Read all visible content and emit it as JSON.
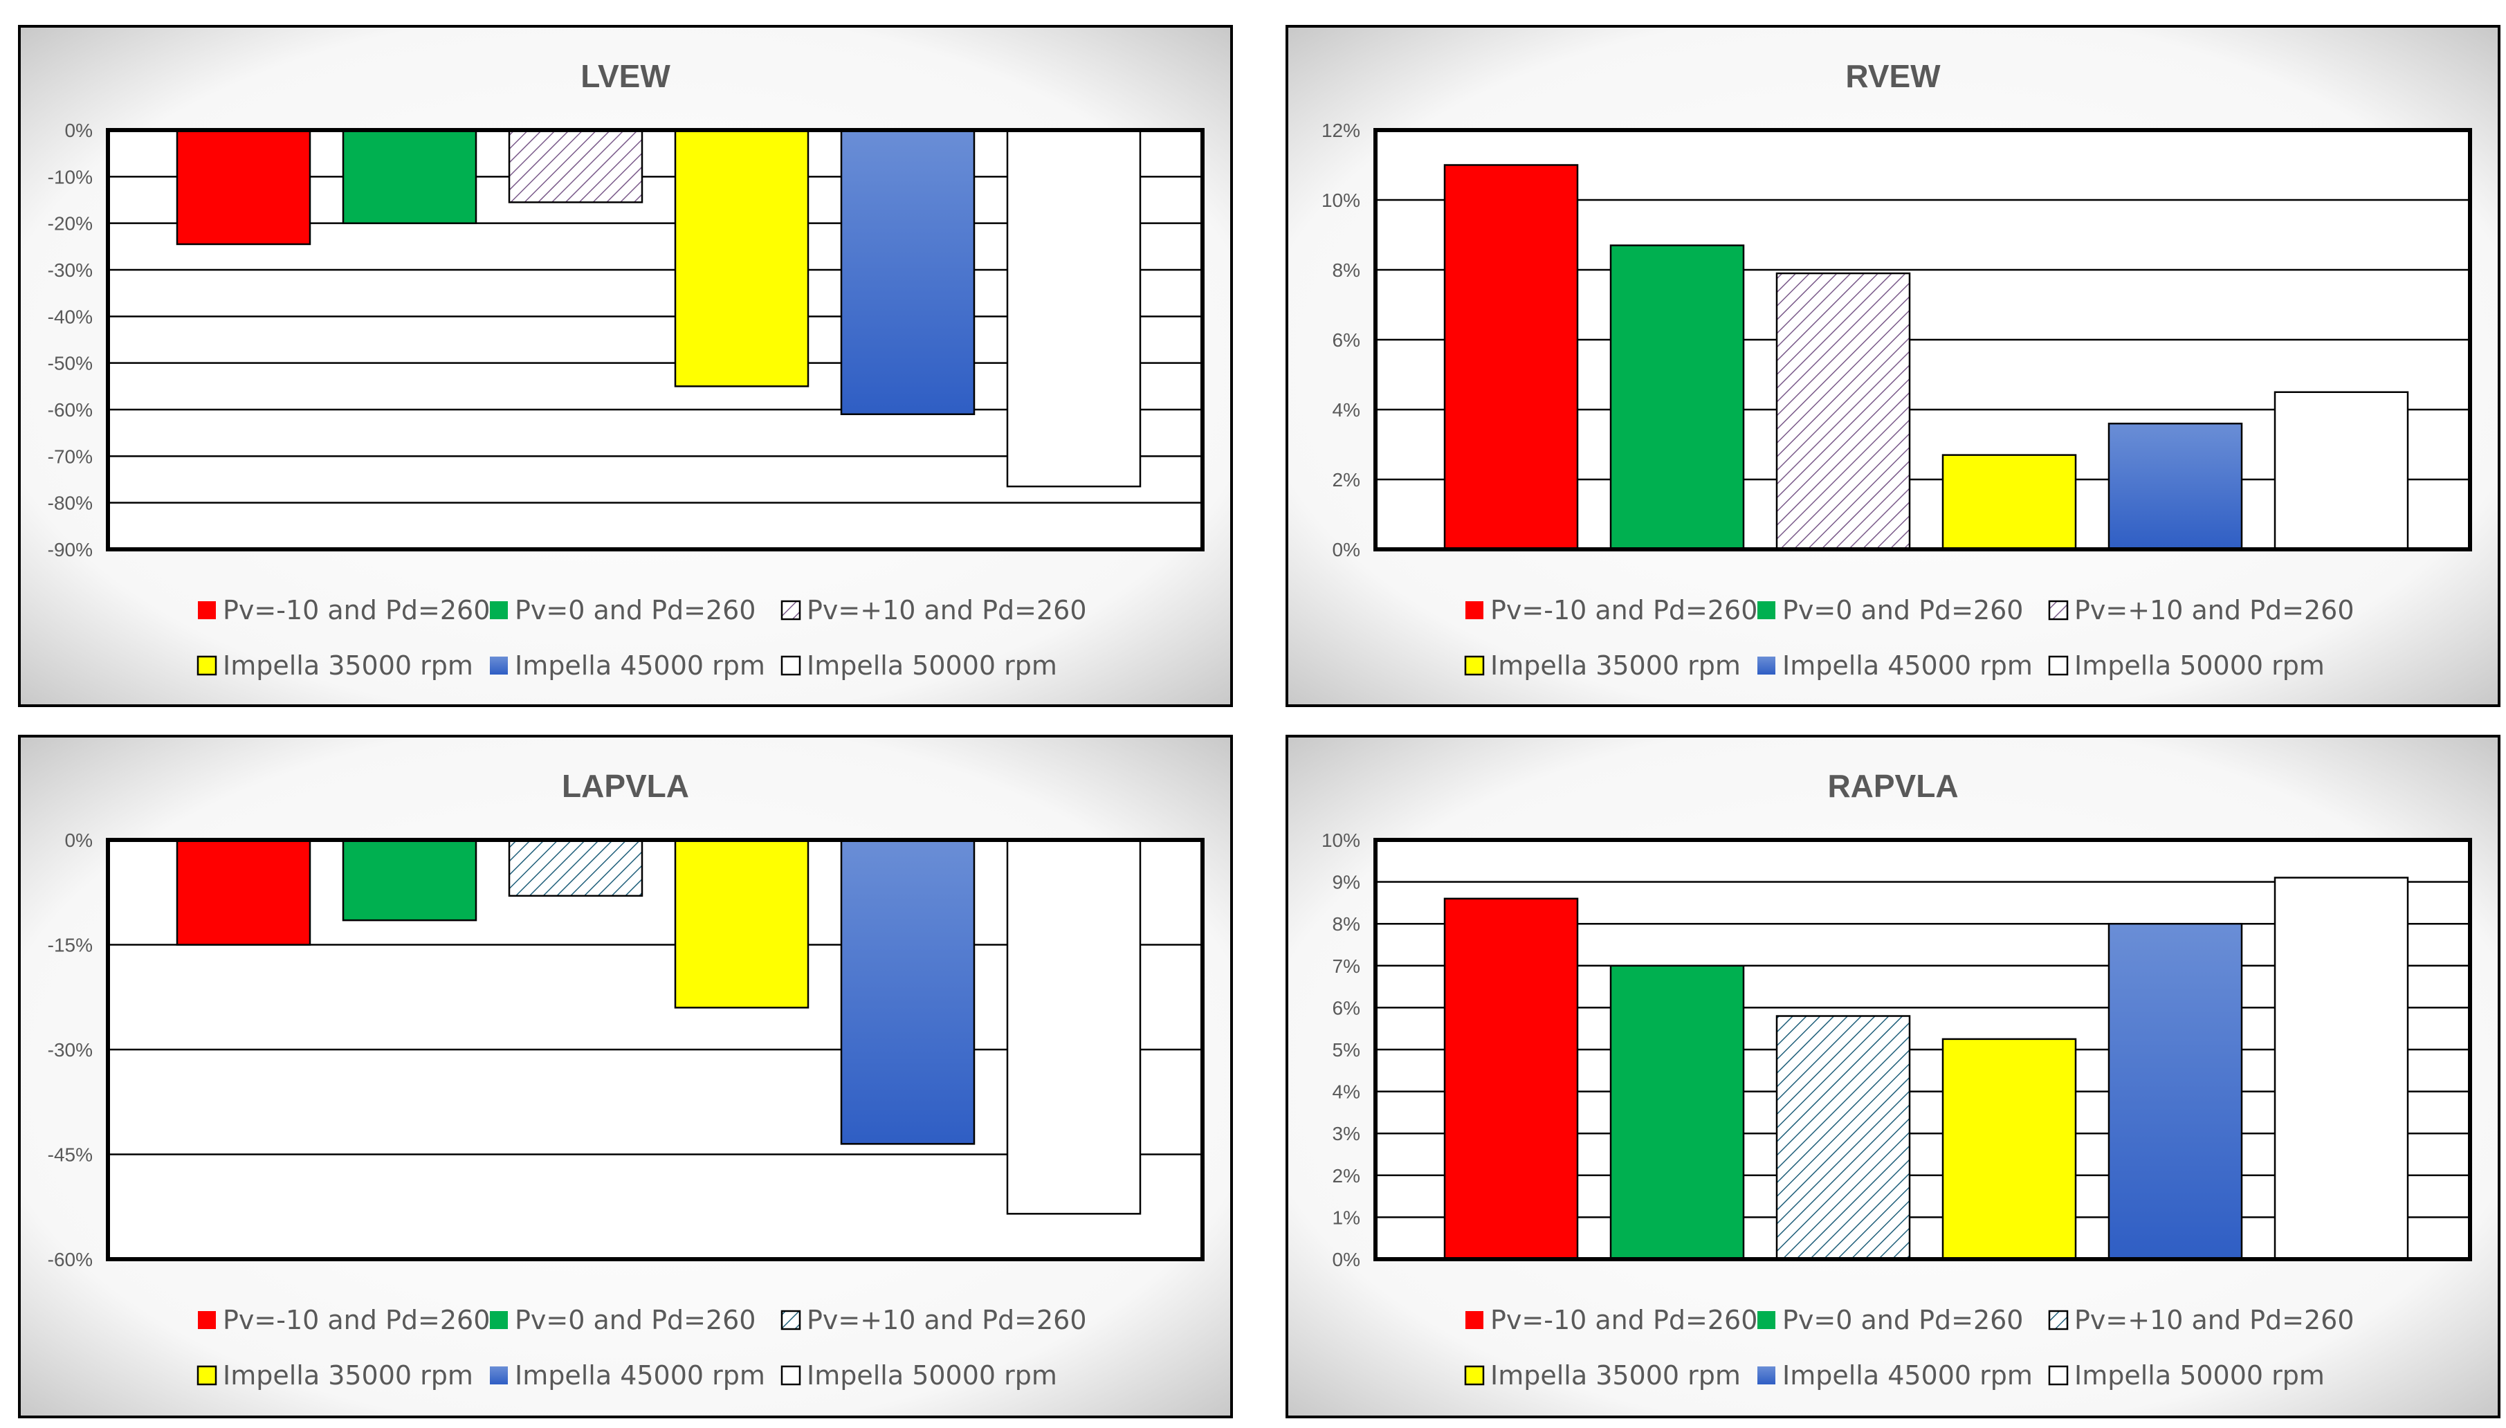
{
  "colors": {
    "red": "#ff0000",
    "green": "#00b050",
    "yellow": "#ffff00",
    "blue_light": "#6a8ed6",
    "blue_dark": "#2f5ec4",
    "white": "#ffffff",
    "hatch_purple": "#7a5a8a",
    "hatch_teal": "#1f5f7a",
    "grid": "#000000",
    "text": "#595959"
  },
  "legend": {
    "items": [
      {
        "label": "Pv=-10 and Pd=260",
        "style": "red"
      },
      {
        "label": "Pv=0 and Pd=260",
        "style": "green"
      },
      {
        "label": "Pv=+10 and Pd=260",
        "style": "hatch"
      },
      {
        "label": "Impella 35000 rpm",
        "style": "yellow"
      },
      {
        "label": "Impella 45000 rpm",
        "style": "blue"
      },
      {
        "label": "Impella 50000 rpm",
        "style": "white"
      }
    ]
  },
  "chart_data": [
    {
      "type": "bar",
      "title": "LVEW",
      "categories": [
        "Pv=-10 and Pd=260",
        "Pv=0 and Pd=260",
        "Pv=+10 and Pd=260",
        "Impella 35000 rpm",
        "Impella 45000 rpm",
        "Impella 50000 rpm"
      ],
      "values": [
        -24.5,
        -20,
        -15.5,
        -55,
        -61,
        -76.5
      ],
      "unit": "%",
      "ylim": [
        -90,
        0
      ],
      "ticks": [
        "0%",
        "-10%",
        "-20%",
        "-30%",
        "-40%",
        "-50%",
        "-60%",
        "-70%",
        "-80%",
        "-90%"
      ],
      "hatch_color": "purple",
      "grid": true,
      "legend_position": "bottom"
    },
    {
      "type": "bar",
      "title": "RVEW",
      "categories": [
        "Pv=-10 and Pd=260",
        "Pv=0 and Pd=260",
        "Pv=+10 and Pd=260",
        "Impella 35000 rpm",
        "Impella 45000 rpm",
        "Impella 50000 rpm"
      ],
      "values": [
        11,
        8.7,
        7.9,
        2.7,
        3.6,
        4.5
      ],
      "unit": "%",
      "ylim": [
        0,
        12
      ],
      "ticks": [
        "12%",
        "10%",
        "8%",
        "6%",
        "4%",
        "2%",
        "0%"
      ],
      "hatch_color": "purple",
      "grid": true,
      "legend_position": "bottom"
    },
    {
      "type": "bar",
      "title": "LAPVLA",
      "categories": [
        "Pv=-10 and Pd=260",
        "Pv=0 and Pd=260",
        "Pv=+10 and Pd=260",
        "Impella 35000 rpm",
        "Impella 45000 rpm",
        "Impella 50000 rpm"
      ],
      "values": [
        -15,
        -11.5,
        -8,
        -24,
        -43.5,
        -53.5
      ],
      "unit": "%",
      "ylim": [
        -60,
        0
      ],
      "ticks": [
        "0%",
        "-15%",
        "-30%",
        "-45%",
        "-60%"
      ],
      "hatch_color": "teal",
      "grid": true,
      "legend_position": "bottom"
    },
    {
      "type": "bar",
      "title": "RAPVLA",
      "categories": [
        "Pv=-10 and Pd=260",
        "Pv=0 and Pd=260",
        "Pv=+10 and Pd=260",
        "Impella 35000 rpm",
        "Impella 45000 rpm",
        "Impella 50000 rpm"
      ],
      "values": [
        8.6,
        7.0,
        5.8,
        5.25,
        8.0,
        9.1
      ],
      "unit": "%",
      "ylim": [
        0,
        10
      ],
      "ticks": [
        "10%",
        "9%",
        "8%",
        "7%",
        "6%",
        "5%",
        "4%",
        "3%",
        "2%",
        "1%",
        "0%"
      ],
      "hatch_color": "teal",
      "grid": true,
      "legend_position": "bottom"
    }
  ]
}
